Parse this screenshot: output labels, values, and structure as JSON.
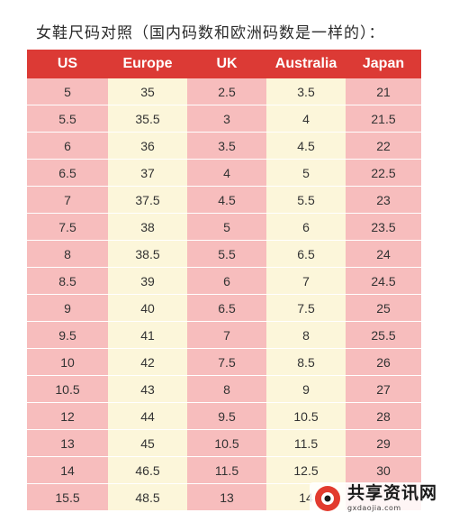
{
  "title": "女鞋尺码对照（国内码数和欧洲码数是一样的）：",
  "table": {
    "headers": [
      "US",
      "Europe",
      "UK",
      "Australia",
      "Japan"
    ],
    "rows": [
      [
        "5",
        "35",
        "2.5",
        "3.5",
        "21"
      ],
      [
        "5.5",
        "35.5",
        "3",
        "4",
        "21.5"
      ],
      [
        "6",
        "36",
        "3.5",
        "4.5",
        "22"
      ],
      [
        "6.5",
        "37",
        "4",
        "5",
        "22.5"
      ],
      [
        "7",
        "37.5",
        "4.5",
        "5.5",
        "23"
      ],
      [
        "7.5",
        "38",
        "5",
        "6",
        "23.5"
      ],
      [
        "8",
        "38.5",
        "5.5",
        "6.5",
        "24"
      ],
      [
        "8.5",
        "39",
        "6",
        "7",
        "24.5"
      ],
      [
        "9",
        "40",
        "6.5",
        "7.5",
        "25"
      ],
      [
        "9.5",
        "41",
        "7",
        "8",
        "25.5"
      ],
      [
        "10",
        "42",
        "7.5",
        "8.5",
        "26"
      ],
      [
        "10.5",
        "43",
        "8",
        "9",
        "27"
      ],
      [
        "12",
        "44",
        "9.5",
        "10.5",
        "28"
      ],
      [
        "13",
        "45",
        "10.5",
        "11.5",
        "29"
      ],
      [
        "14",
        "46.5",
        "11.5",
        "12.5",
        "30"
      ],
      [
        "15.5",
        "48.5",
        "13",
        "14",
        ""
      ]
    ]
  },
  "watermark": {
    "name": "共享资讯网",
    "url": "gxdaojia.com"
  },
  "colors": {
    "header": "#dc3a35",
    "pink": "#f7bdbd",
    "cream": "#fcf6da"
  }
}
